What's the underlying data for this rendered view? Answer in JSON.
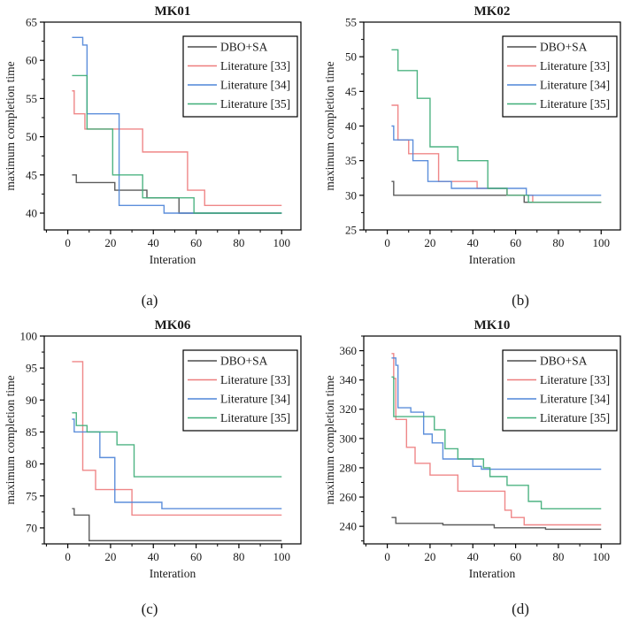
{
  "figure": {
    "background": "#ffffff",
    "text_color": "#1a1a1a",
    "axis_color": "#000000"
  },
  "palette": {
    "dbo_sa": "#4d4d4d",
    "lit33": "#ee7d7e",
    "lit34": "#4f86d8",
    "lit35": "#3fae78"
  },
  "legend": {
    "entries": [
      "DBO+SA",
      "Literature [33]",
      "Literature [34]",
      "Literature [35]"
    ],
    "border_color": "#000000",
    "position": "top-right"
  },
  "chart_data": [
    {
      "type": "line",
      "step": true,
      "title": "MK01",
      "caption": "(a)",
      "xlabel": "Interation",
      "ylabel": "maximum completion time",
      "xlim": [
        -11,
        109
      ],
      "ylim": [
        37.8,
        65
      ],
      "xticks": [
        0,
        20,
        40,
        60,
        80,
        100
      ],
      "yticks": [
        40,
        45,
        50,
        55,
        60,
        65
      ],
      "x_minor_step": 10,
      "y_minor_step": 2.5,
      "grid": false,
      "legend_position": "top-right",
      "series": [
        {
          "name": "DBO+SA",
          "color": "#4d4d4d",
          "points": [
            [
              2,
              45
            ],
            [
              4,
              44
            ],
            [
              22,
              43
            ],
            [
              37,
              42
            ],
            [
              52,
              40
            ],
            [
              100,
              40
            ]
          ]
        },
        {
          "name": "Literature [33]",
          "color": "#ee7d7e",
          "points": [
            [
              2,
              56
            ],
            [
              3,
              53
            ],
            [
              8,
              51
            ],
            [
              35,
              48
            ],
            [
              56,
              43
            ],
            [
              64,
              41
            ],
            [
              100,
              41
            ]
          ]
        },
        {
          "name": "Literature [34]",
          "color": "#4f86d8",
          "points": [
            [
              2,
              63
            ],
            [
              7,
              62
            ],
            [
              9,
              53
            ],
            [
              24,
              41
            ],
            [
              45,
              40
            ],
            [
              100,
              40
            ]
          ]
        },
        {
          "name": "Literature [35]",
          "color": "#3fae78",
          "points": [
            [
              2,
              58
            ],
            [
              9,
              51
            ],
            [
              21,
              45
            ],
            [
              35,
              42
            ],
            [
              59,
              40
            ],
            [
              100,
              40
            ]
          ]
        }
      ]
    },
    {
      "type": "line",
      "step": true,
      "title": "MK02",
      "caption": "(b)",
      "xlabel": "Interation",
      "ylabel": "maximum completion time",
      "xlim": [
        -11,
        109
      ],
      "ylim": [
        25,
        55
      ],
      "xticks": [
        0,
        20,
        40,
        60,
        80,
        100
      ],
      "yticks": [
        25,
        30,
        35,
        40,
        45,
        50,
        55
      ],
      "x_minor_step": 10,
      "y_minor_step": 2.5,
      "grid": false,
      "legend_position": "top-right",
      "series": [
        {
          "name": "DBO+SA",
          "color": "#4d4d4d",
          "points": [
            [
              2,
              32
            ],
            [
              3,
              30
            ],
            [
              64,
              29
            ],
            [
              100,
              29
            ]
          ]
        },
        {
          "name": "Literature [33]",
          "color": "#ee7d7e",
          "points": [
            [
              2,
              43
            ],
            [
              5,
              38
            ],
            [
              10,
              36
            ],
            [
              24,
              32
            ],
            [
              42,
              31
            ],
            [
              56,
              30
            ],
            [
              68,
              29
            ],
            [
              100,
              29
            ]
          ]
        },
        {
          "name": "Literature [34]",
          "color": "#4f86d8",
          "points": [
            [
              2,
              40
            ],
            [
              3,
              38
            ],
            [
              12,
              35
            ],
            [
              19,
              32
            ],
            [
              30,
              31
            ],
            [
              65,
              30
            ],
            [
              100,
              30
            ]
          ]
        },
        {
          "name": "Literature [35]",
          "color": "#3fae78",
          "points": [
            [
              2,
              51
            ],
            [
              5,
              48
            ],
            [
              14,
              44
            ],
            [
              20,
              37
            ],
            [
              33,
              35
            ],
            [
              47,
              31
            ],
            [
              56,
              30
            ],
            [
              66,
              29
            ],
            [
              100,
              29
            ]
          ]
        }
      ]
    },
    {
      "type": "line",
      "step": true,
      "title": "MK06",
      "caption": "(c)",
      "xlabel": "Interation",
      "ylabel": "maximum completion time",
      "xlim": [
        -11,
        109
      ],
      "ylim": [
        67.5,
        100
      ],
      "xticks": [
        0,
        20,
        40,
        60,
        80,
        100
      ],
      "yticks": [
        70,
        75,
        80,
        85,
        90,
        95,
        100
      ],
      "x_minor_step": 10,
      "y_minor_step": 2.5,
      "grid": false,
      "legend_position": "top-right",
      "series": [
        {
          "name": "DBO+SA",
          "color": "#4d4d4d",
          "points": [
            [
              2,
              73
            ],
            [
              3,
              72
            ],
            [
              10,
              68
            ],
            [
              100,
              68
            ]
          ]
        },
        {
          "name": "Literature [33]",
          "color": "#ee7d7e",
          "points": [
            [
              2,
              96
            ],
            [
              7,
              79
            ],
            [
              13,
              76
            ],
            [
              30,
              72
            ],
            [
              100,
              72
            ]
          ]
        },
        {
          "name": "Literature [34]",
          "color": "#4f86d8",
          "points": [
            [
              2,
              87
            ],
            [
              3,
              85
            ],
            [
              15,
              81
            ],
            [
              22,
              74
            ],
            [
              44,
              73
            ],
            [
              100,
              73
            ]
          ]
        },
        {
          "name": "Literature [35]",
          "color": "#3fae78",
          "points": [
            [
              2,
              88
            ],
            [
              4,
              86
            ],
            [
              9,
              85
            ],
            [
              23,
              83
            ],
            [
              31,
              78
            ],
            [
              100,
              78
            ]
          ]
        }
      ]
    },
    {
      "type": "line",
      "step": true,
      "title": "MK10",
      "caption": "(d)",
      "xlabel": "Interation",
      "ylabel": "maximum completion time",
      "xlim": [
        -11,
        109
      ],
      "ylim": [
        228,
        370
      ],
      "xticks": [
        0,
        20,
        40,
        60,
        80,
        100
      ],
      "yticks": [
        240,
        260,
        280,
        300,
        320,
        340,
        360
      ],
      "x_minor_step": 10,
      "y_minor_step": 10,
      "grid": false,
      "legend_position": "top-right",
      "series": [
        {
          "name": "DBO+SA",
          "color": "#4d4d4d",
          "points": [
            [
              2,
              246
            ],
            [
              4,
              242
            ],
            [
              26,
              241
            ],
            [
              50,
              239
            ],
            [
              74,
              238
            ],
            [
              100,
              238
            ]
          ]
        },
        {
          "name": "Literature [33]",
          "color": "#ee7d7e",
          "points": [
            [
              2,
              358
            ],
            [
              3,
              341
            ],
            [
              4,
              313
            ],
            [
              9,
              294
            ],
            [
              13,
              283
            ],
            [
              20,
              275
            ],
            [
              33,
              264
            ],
            [
              55,
              251
            ],
            [
              58,
              246
            ],
            [
              64,
              241
            ],
            [
              100,
              241
            ]
          ]
        },
        {
          "name": "Literature [34]",
          "color": "#4f86d8",
          "points": [
            [
              2,
              355
            ],
            [
              4,
              350
            ],
            [
              5,
              321
            ],
            [
              11,
              318
            ],
            [
              17,
              303
            ],
            [
              21,
              297
            ],
            [
              26,
              286
            ],
            [
              40,
              281
            ],
            [
              44,
              279
            ],
            [
              100,
              279
            ]
          ]
        },
        {
          "name": "Literature [35]",
          "color": "#3fae78",
          "points": [
            [
              2,
              342
            ],
            [
              3,
              315
            ],
            [
              22,
              306
            ],
            [
              27,
              293
            ],
            [
              33,
              286
            ],
            [
              45,
              280
            ],
            [
              48,
              274
            ],
            [
              56,
              268
            ],
            [
              66,
              257
            ],
            [
              72,
              252
            ],
            [
              100,
              252
            ]
          ]
        }
      ]
    }
  ]
}
